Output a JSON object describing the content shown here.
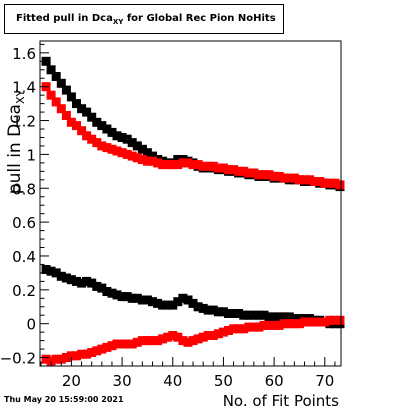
{
  "title": {
    "main": "Fitted pull in Dca",
    "sub": "XY",
    "rest": " for Global Rec Pion NoHits"
  },
  "datestamp": "Thu May 20 15:59:00 2021",
  "chart_data": {
    "type": "scatter",
    "xlabel": "No. of Fit Points",
    "ylabel": "pull in Dca",
    "ylabel_sub": "XY",
    "xlim": [
      13.8,
      73.2
    ],
    "ylim": [
      -0.25,
      1.67
    ],
    "xticks": [
      20,
      30,
      40,
      50,
      60,
      70
    ],
    "yticks": [
      -0.2,
      0,
      0.2,
      0.4,
      0.6,
      0.8,
      1,
      1.2,
      1.4,
      1.6
    ],
    "ytick_labels": [
      "−0.2",
      "0",
      "0.2",
      "0.4",
      "0.6",
      "0.8",
      "1",
      "1.2",
      "1.4",
      "1.6"
    ],
    "x": [
      15,
      16,
      17,
      18,
      19,
      20,
      21,
      22,
      23,
      24,
      25,
      26,
      27,
      28,
      29,
      30,
      31,
      32,
      33,
      34,
      35,
      36,
      37,
      38,
      39,
      40,
      41,
      42,
      43,
      44,
      45,
      46,
      47,
      48,
      49,
      50,
      51,
      52,
      53,
      54,
      55,
      56,
      57,
      58,
      59,
      60,
      61,
      62,
      63,
      64,
      65,
      66,
      67,
      68,
      69,
      70,
      71,
      72,
      73
    ],
    "series": [
      {
        "color": "#000000",
        "values": [
          1.55,
          1.5,
          1.46,
          1.42,
          1.38,
          1.34,
          1.3,
          1.27,
          1.25,
          1.22,
          1.19,
          1.17,
          1.15,
          1.13,
          1.11,
          1.1,
          1.09,
          1.07,
          1.05,
          1.03,
          1.01,
          0.99,
          0.97,
          0.96,
          0.95,
          0.95,
          0.97,
          0.97,
          0.96,
          0.95,
          0.93,
          0.92,
          0.92,
          0.92,
          0.91,
          0.91,
          0.9,
          0.9,
          0.89,
          0.89,
          0.88,
          0.88,
          0.87,
          0.87,
          0.87,
          0.86,
          0.86,
          0.86,
          0.85,
          0.85,
          0.85,
          0.84,
          0.84,
          0.84,
          0.83,
          0.83,
          0.82,
          0.82,
          0.81
        ]
      },
      {
        "color": "#ff0000",
        "values": [
          1.4,
          1.35,
          1.31,
          1.27,
          1.23,
          1.19,
          1.17,
          1.14,
          1.11,
          1.09,
          1.07,
          1.05,
          1.04,
          1.03,
          1.02,
          1.01,
          1.0,
          0.99,
          0.98,
          0.97,
          0.96,
          0.96,
          0.95,
          0.94,
          0.94,
          0.94,
          0.94,
          0.95,
          0.95,
          0.94,
          0.94,
          0.93,
          0.93,
          0.93,
          0.92,
          0.92,
          0.91,
          0.91,
          0.9,
          0.9,
          0.89,
          0.89,
          0.88,
          0.88,
          0.88,
          0.87,
          0.87,
          0.86,
          0.86,
          0.86,
          0.85,
          0.85,
          0.85,
          0.84,
          0.84,
          0.83,
          0.83,
          0.83,
          0.82
        ]
      },
      {
        "color": "#000000",
        "values": [
          0.32,
          0.31,
          0.3,
          0.28,
          0.27,
          0.26,
          0.25,
          0.24,
          0.25,
          0.24,
          0.22,
          0.21,
          0.19,
          0.18,
          0.17,
          0.16,
          0.16,
          0.15,
          0.15,
          0.14,
          0.14,
          0.13,
          0.12,
          0.11,
          0.11,
          0.11,
          0.13,
          0.15,
          0.14,
          0.12,
          0.1,
          0.09,
          0.08,
          0.08,
          0.07,
          0.07,
          0.06,
          0.06,
          0.06,
          0.05,
          0.05,
          0.05,
          0.05,
          0.05,
          0.04,
          0.04,
          0.04,
          0.04,
          0.04,
          0.03,
          0.03,
          0.03,
          0.03,
          0.02,
          0.02,
          0.01,
          0.0,
          0.0,
          0.0
        ]
      },
      {
        "color": "#ff0000",
        "values": [
          -0.21,
          -0.22,
          -0.21,
          -0.21,
          -0.2,
          -0.19,
          -0.19,
          -0.18,
          -0.18,
          -0.17,
          -0.16,
          -0.15,
          -0.14,
          -0.13,
          -0.12,
          -0.12,
          -0.12,
          -0.12,
          -0.11,
          -0.1,
          -0.1,
          -0.1,
          -0.1,
          -0.09,
          -0.08,
          -0.07,
          -0.08,
          -0.1,
          -0.11,
          -0.1,
          -0.09,
          -0.08,
          -0.07,
          -0.07,
          -0.06,
          -0.05,
          -0.04,
          -0.03,
          -0.03,
          -0.03,
          -0.02,
          -0.02,
          -0.02,
          -0.01,
          -0.01,
          -0.01,
          -0.01,
          0.0,
          0.0,
          0.0,
          0.0,
          0.01,
          0.01,
          0.01,
          0.01,
          0.01,
          0.02,
          0.02,
          0.02
        ]
      }
    ]
  }
}
